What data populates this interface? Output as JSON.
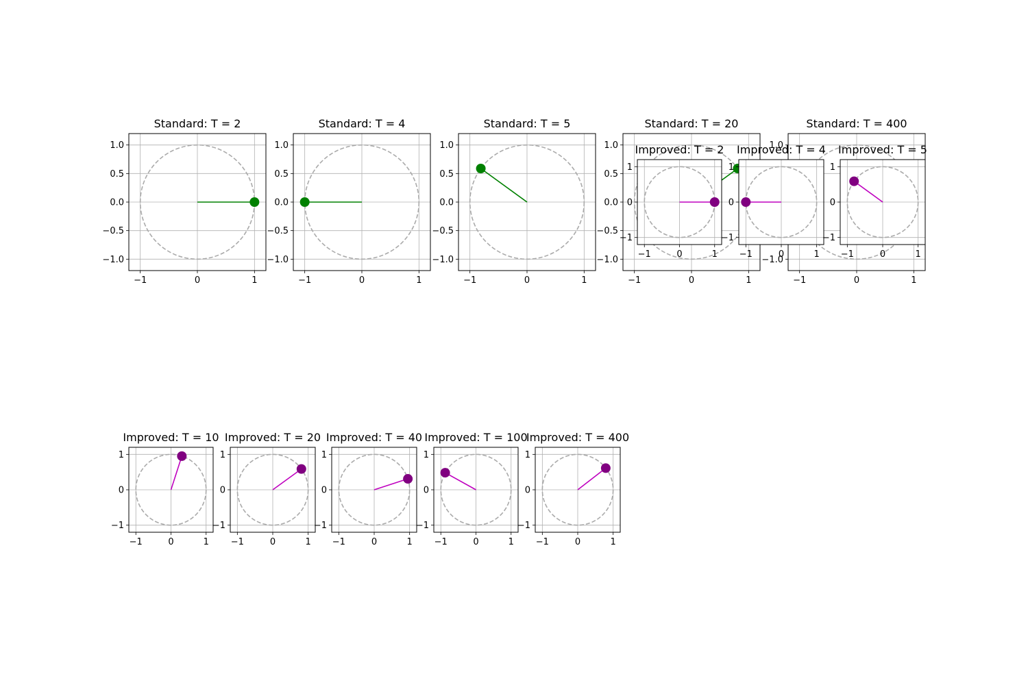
{
  "chart_data": [
    {
      "type": "scatter",
      "title": "Standard: T = 2",
      "xlim": [
        -1.2,
        1.2
      ],
      "ylim": [
        -1.2,
        1.2
      ],
      "xticks": [
        -1,
        0,
        1
      ],
      "xtick_labels": [
        "−1",
        "0",
        "1"
      ],
      "yticks": [
        -1.0,
        -0.5,
        0.0,
        0.5,
        1.0
      ],
      "ytick_labels": [
        "−1.0",
        "−0.5",
        "0.0",
        "0.5",
        "1.0"
      ],
      "grid": true,
      "circle_radius": 1,
      "point": {
        "x": 1.0,
        "y": 0.0
      },
      "marker_color": "#008000",
      "line_color": "#008000"
    },
    {
      "type": "scatter",
      "title": "Standard: T = 4",
      "xlim": [
        -1.2,
        1.2
      ],
      "ylim": [
        -1.2,
        1.2
      ],
      "xticks": [
        -1,
        0,
        1
      ],
      "xtick_labels": [
        "−1",
        "0",
        "1"
      ],
      "yticks": [
        -1.0,
        -0.5,
        0.0,
        0.5,
        1.0
      ],
      "ytick_labels": [
        "−1.0",
        "−0.5",
        "0.0",
        "0.5",
        "1.0"
      ],
      "grid": true,
      "circle_radius": 1,
      "point": {
        "x": -1.0,
        "y": 0.0
      },
      "marker_color": "#008000",
      "line_color": "#008000"
    },
    {
      "type": "scatter",
      "title": "Standard: T = 5",
      "xlim": [
        -1.2,
        1.2
      ],
      "ylim": [
        -1.2,
        1.2
      ],
      "xticks": [
        -1,
        0,
        1
      ],
      "xtick_labels": [
        "−1",
        "0",
        "1"
      ],
      "yticks": [
        -1.0,
        -0.5,
        0.0,
        0.5,
        1.0
      ],
      "ytick_labels": [
        "−1.0",
        "−0.5",
        "0.0",
        "0.5",
        "1.0"
      ],
      "grid": true,
      "circle_radius": 1,
      "point": {
        "x": -0.809,
        "y": 0.588
      },
      "marker_color": "#008000",
      "line_color": "#008000"
    },
    {
      "type": "scatter",
      "title": "Standard: T = 20",
      "xlim": [
        -1.2,
        1.2
      ],
      "ylim": [
        -1.2,
        1.2
      ],
      "xticks": [
        -1,
        0,
        1
      ],
      "xtick_labels": [
        "−1",
        "0",
        "1"
      ],
      "yticks": [
        -1.0,
        -0.5,
        0.0,
        0.5,
        1.0
      ],
      "ytick_labels": [
        "−1.0",
        "−0.5",
        "0.0",
        "0.5",
        "1.0"
      ],
      "grid": true,
      "circle_radius": 1,
      "point": {
        "x": 0.809,
        "y": 0.588
      },
      "marker_color": "#008000",
      "line_color": "#008000"
    },
    {
      "type": "scatter",
      "title": "Standard: T = 400",
      "xlim": [
        -1.2,
        1.2
      ],
      "ylim": [
        -1.2,
        1.2
      ],
      "xticks": [
        -1,
        0,
        1
      ],
      "xtick_labels": [
        "−1",
        "0",
        "1"
      ],
      "yticks": [
        -1.0,
        -0.5,
        0.0,
        0.5,
        1.0
      ],
      "ytick_labels": [
        "−1.0",
        "−0.5",
        "0.0",
        "0.5",
        "1.0"
      ],
      "grid": true,
      "circle_radius": 1,
      "point": null,
      "marker_color": "#008000",
      "line_color": "#008000"
    },
    {
      "type": "scatter",
      "title": "Improved: T = 2",
      "xlim": [
        -1.2,
        1.2
      ],
      "ylim": [
        -1.2,
        1.2
      ],
      "xticks": [
        -1,
        0,
        1
      ],
      "xtick_labels": [
        "−1",
        "0",
        "1"
      ],
      "yticks": [
        -1,
        0,
        1
      ],
      "ytick_labels": [
        "−1",
        "0",
        "1"
      ],
      "grid": true,
      "circle_radius": 1,
      "point": {
        "x": 1.0,
        "y": 0.0
      },
      "marker_color": "#800080",
      "line_color": "#bf00bf"
    },
    {
      "type": "scatter",
      "title": "Improved: T = 4",
      "xlim": [
        -1.2,
        1.2
      ],
      "ylim": [
        -1.2,
        1.2
      ],
      "xticks": [
        -1,
        0,
        1
      ],
      "xtick_labels": [
        "−1",
        "0",
        "1"
      ],
      "yticks": [
        -1,
        0,
        1
      ],
      "ytick_labels": [
        "−1",
        "0",
        "1"
      ],
      "grid": true,
      "circle_radius": 1,
      "point": {
        "x": -1.0,
        "y": 0.0
      },
      "marker_color": "#800080",
      "line_color": "#bf00bf"
    },
    {
      "type": "scatter",
      "title": "Improved: T = 5",
      "xlim": [
        -1.2,
        1.2
      ],
      "ylim": [
        -1.2,
        1.2
      ],
      "xticks": [
        -1,
        0,
        1
      ],
      "xtick_labels": [
        "−1",
        "0",
        "1"
      ],
      "yticks": [
        -1,
        0,
        1
      ],
      "ytick_labels": [
        "−1",
        "0",
        "1"
      ],
      "grid": true,
      "circle_radius": 1,
      "point": {
        "x": -0.809,
        "y": 0.588
      },
      "marker_color": "#800080",
      "line_color": "#bf00bf"
    },
    {
      "type": "scatter",
      "title": "Improved: T = 10",
      "xlim": [
        -1.2,
        1.2
      ],
      "ylim": [
        -1.2,
        1.2
      ],
      "xticks": [
        -1,
        0,
        1
      ],
      "xtick_labels": [
        "−1",
        "0",
        "1"
      ],
      "yticks": [
        -1,
        0,
        1
      ],
      "ytick_labels": [
        "−1",
        "0",
        "1"
      ],
      "grid": true,
      "circle_radius": 1,
      "point": {
        "x": 0.309,
        "y": 0.951
      },
      "marker_color": "#800080",
      "line_color": "#bf00bf"
    },
    {
      "type": "scatter",
      "title": "Improved: T = 20",
      "xlim": [
        -1.2,
        1.2
      ],
      "ylim": [
        -1.2,
        1.2
      ],
      "xticks": [
        -1,
        0,
        1
      ],
      "xtick_labels": [
        "−1",
        "0",
        "1"
      ],
      "yticks": [
        -1,
        0,
        1
      ],
      "ytick_labels": [
        "−1",
        "0",
        "1"
      ],
      "grid": true,
      "circle_radius": 1,
      "point": {
        "x": 0.809,
        "y": 0.588
      },
      "marker_color": "#800080",
      "line_color": "#bf00bf"
    },
    {
      "type": "scatter",
      "title": "Improved: T = 40",
      "xlim": [
        -1.2,
        1.2
      ],
      "ylim": [
        -1.2,
        1.2
      ],
      "xticks": [
        -1,
        0,
        1
      ],
      "xtick_labels": [
        "−1",
        "0",
        "1"
      ],
      "yticks": [
        -1,
        0,
        1
      ],
      "ytick_labels": [
        "−1",
        "0",
        "1"
      ],
      "grid": true,
      "circle_radius": 1,
      "point": {
        "x": 0.951,
        "y": 0.309
      },
      "marker_color": "#800080",
      "line_color": "#bf00bf"
    },
    {
      "type": "scatter",
      "title": "Improved: T = 100",
      "xlim": [
        -1.2,
        1.2
      ],
      "ylim": [
        -1.2,
        1.2
      ],
      "xticks": [
        -1,
        0,
        1
      ],
      "xtick_labels": [
        "−1",
        "0",
        "1"
      ],
      "yticks": [
        -1,
        0,
        1
      ],
      "ytick_labels": [
        "−1",
        "0",
        "1"
      ],
      "grid": true,
      "circle_radius": 1,
      "point": {
        "x": -0.876,
        "y": 0.482
      },
      "marker_color": "#800080",
      "line_color": "#bf00bf"
    },
    {
      "type": "scatter",
      "title": "Improved: T = 400",
      "xlim": [
        -1.2,
        1.2
      ],
      "ylim": [
        -1.2,
        1.2
      ],
      "xticks": [
        -1,
        0,
        1
      ],
      "xtick_labels": [
        "−1",
        "0",
        "1"
      ],
      "yticks": [
        -1,
        0,
        1
      ],
      "ytick_labels": [
        "−1",
        "0",
        "1"
      ],
      "grid": true,
      "circle_radius": 1,
      "point": {
        "x": 0.791,
        "y": 0.612
      },
      "marker_color": "#800080",
      "line_color": "#bf00bf"
    }
  ]
}
